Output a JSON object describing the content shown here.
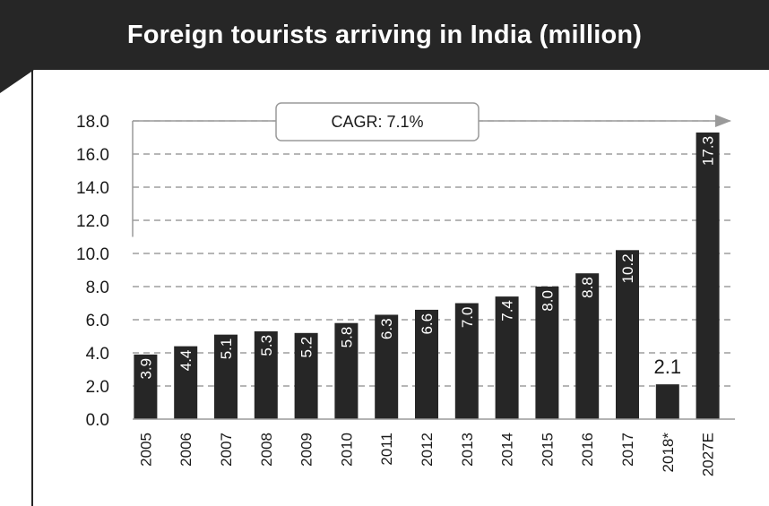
{
  "chart_data": {
    "type": "bar",
    "title": "Foreign tourists arriving in India (million)",
    "categories": [
      "2005",
      "2006",
      "2007",
      "2008",
      "2009",
      "2010",
      "2011",
      "2012",
      "2013",
      "2014",
      "2015",
      "2016",
      "2017",
      "2018*",
      "2027E"
    ],
    "values": [
      3.9,
      4.4,
      5.1,
      5.3,
      5.2,
      5.8,
      6.3,
      6.6,
      7.0,
      7.4,
      8.0,
      8.8,
      10.2,
      2.1,
      17.3
    ],
    "value_labels": [
      "3.9",
      "4.4",
      "5.1",
      "5.3",
      "5.2",
      "5.8",
      "6.3",
      "6.6",
      "7.0",
      "7.4",
      "8.0",
      "8.8",
      "10.2",
      "2.1",
      "17.3"
    ],
    "ylim": [
      0,
      18
    ],
    "yticks": [
      "0.0",
      "2.0",
      "4.0",
      "6.0",
      "8.0",
      "10.0",
      "12.0",
      "14.0",
      "16.0",
      "18.0"
    ],
    "annotation": "CAGR: 7.1%",
    "grid": true,
    "bar_color": "#262626"
  }
}
